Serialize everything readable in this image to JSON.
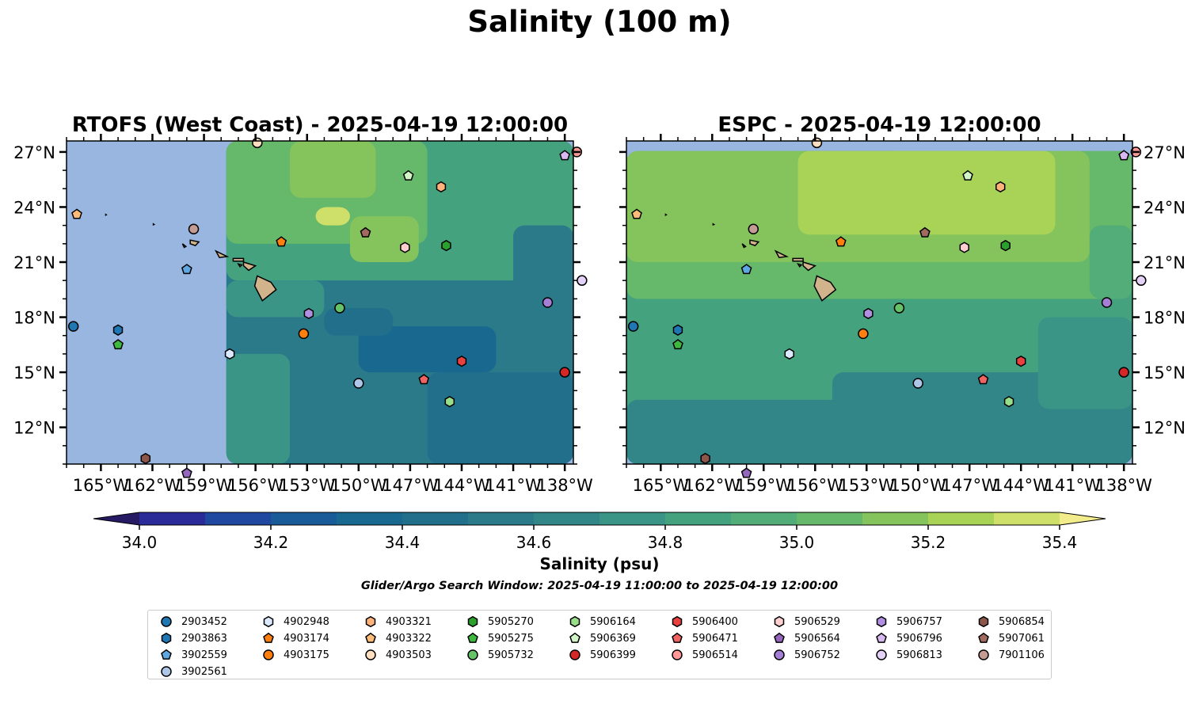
{
  "title": "Salinity (100 m)",
  "panels": [
    {
      "id": "rtofs",
      "title": "RTOFS (West Coast) - 2025-04-19 12:00:00"
    },
    {
      "id": "espc",
      "title": "ESPC - 2025-04-19 12:00:00"
    }
  ],
  "colors": {
    "land_mask": "#99b6e0",
    "island_fill": "#d2b48c",
    "levels": [
      "#251a63",
      "#2a2a98",
      "#1f48a0",
      "#195a98",
      "#186890",
      "#226f8c",
      "#2a7a8a",
      "#328688",
      "#3a9586",
      "#45a27f",
      "#52ad78",
      "#66b86a",
      "#85c45d",
      "#a9d356",
      "#cfe06a",
      "#f3ec8c"
    ]
  },
  "chart_data": [
    {
      "type": "heatmap",
      "panel": "rtofs",
      "title": "RTOFS (West Coast) - 2025-04-19 12:00:00",
      "variable": "Salinity (psu)",
      "depth_m": 100,
      "xlim": [
        -167,
        -137.5
      ],
      "ylim": [
        10,
        27.6
      ],
      "xticks": [
        -165,
        -162,
        -159,
        -156,
        -153,
        -150,
        -147,
        -144,
        -141,
        -138
      ],
      "xtick_labels": [
        "165°W",
        "162°W",
        "159°W",
        "156°W",
        "153°W",
        "150°W",
        "147°W",
        "144°W",
        "141°W",
        "138°W"
      ],
      "yticks": [
        12,
        15,
        18,
        21,
        24,
        27
      ],
      "ytick_labels": [
        "12°N",
        "15°N",
        "18°N",
        "21°N",
        "24°N",
        "27°N"
      ],
      "model_domain_west_lon": -157.7,
      "field_description": "eddying field ~34.4-35.2 psu, fresher in south-east, saltier in north",
      "field_blocks": [
        {
          "lon": [
            -157.7,
            -137.5
          ],
          "lat": [
            10,
            27.6
          ],
          "v": 34.55
        },
        {
          "lon": [
            -157.7,
            -137.5
          ],
          "lat": [
            20,
            27.6
          ],
          "v": 34.85
        },
        {
          "lon": [
            -157.7,
            -146
          ],
          "lat": [
            22,
            27.6
          ],
          "v": 35.05
        },
        {
          "lon": [
            -154,
            -149
          ],
          "lat": [
            24.5,
            27.6
          ],
          "v": 35.12
        },
        {
          "lon": [
            -150.5,
            -146.5
          ],
          "lat": [
            21,
            23.5
          ],
          "v": 35.1
        },
        {
          "lon": [
            -157.7,
            -152
          ],
          "lat": [
            18,
            20
          ],
          "v": 34.75
        },
        {
          "lon": [
            -146,
            -137.5
          ],
          "lat": [
            10,
            15
          ],
          "v": 34.42
        },
        {
          "lon": [
            -150,
            -142
          ],
          "lat": [
            15,
            17.5
          ],
          "v": 34.38
        },
        {
          "lon": [
            -152,
            -148
          ],
          "lat": [
            17,
            18.5
          ],
          "v": 34.45
        },
        {
          "lon": [
            -141,
            -137.5
          ],
          "lat": [
            18,
            23
          ],
          "v": 34.5
        },
        {
          "lon": [
            -157.7,
            -154
          ],
          "lat": [
            10,
            16
          ],
          "v": 34.7
        },
        {
          "lon": [
            -152.5,
            -150.5
          ],
          "lat": [
            23,
            24
          ],
          "v": 35.3
        }
      ]
    },
    {
      "type": "heatmap",
      "panel": "espc",
      "title": "ESPC - 2025-04-19 12:00:00",
      "variable": "Salinity (psu)",
      "depth_m": 100,
      "xlim": [
        -167,
        -137.5
      ],
      "ylim": [
        10,
        27.6
      ],
      "xticks": [
        -165,
        -162,
        -159,
        -156,
        -153,
        -150,
        -147,
        -144,
        -141,
        -138
      ],
      "xtick_labels": [
        "165°W",
        "162°W",
        "159°W",
        "156°W",
        "153°W",
        "150°W",
        "147°W",
        "144°W",
        "141°W",
        "138°W"
      ],
      "yticks": [
        12,
        15,
        18,
        21,
        24,
        27
      ],
      "ytick_labels": [
        "12°N",
        "15°N",
        "18°N",
        "21°N",
        "24°N",
        "27°N"
      ],
      "model_domain_north_lat": 27.05,
      "field_description": "smooth field, ~35.2 psu north grading to ~34.6 psu south",
      "field_blocks": [
        {
          "lon": [
            -167,
            -137.5
          ],
          "lat": [
            10,
            27.05
          ],
          "v": 34.85
        },
        {
          "lon": [
            -167,
            -137.5
          ],
          "lat": [
            10,
            13.5
          ],
          "v": 34.62
        },
        {
          "lon": [
            -155,
            -137.5
          ],
          "lat": [
            10,
            15
          ],
          "v": 34.65
        },
        {
          "lon": [
            -143,
            -137.5
          ],
          "lat": [
            13,
            18
          ],
          "v": 34.72
        },
        {
          "lon": [
            -167,
            -137.5
          ],
          "lat": [
            19,
            27.05
          ],
          "v": 35.05
        },
        {
          "lon": [
            -167,
            -140
          ],
          "lat": [
            21,
            27.05
          ],
          "v": 35.12
        },
        {
          "lon": [
            -157,
            -142
          ],
          "lat": [
            22.5,
            27.05
          ],
          "v": 35.22
        },
        {
          "lon": [
            -152,
            -145
          ],
          "lat": [
            25,
            27.05
          ],
          "v": 35.28
        },
        {
          "lon": [
            -140,
            -137.5
          ],
          "lat": [
            19,
            23
          ],
          "v": 34.95
        }
      ]
    }
  ],
  "colorbar": {
    "label": "Salinity (psu)",
    "levels": [
      34.0,
      34.1,
      34.2,
      34.3,
      34.4,
      34.5,
      34.6,
      34.7,
      34.8,
      34.9,
      35.0,
      35.1,
      35.2,
      35.3,
      35.4
    ],
    "ticks": [
      34.0,
      34.2,
      34.4,
      34.6,
      34.8,
      35.0,
      35.2,
      35.4
    ],
    "tick_labels": [
      "34.0",
      "34.2",
      "34.4",
      "34.6",
      "34.8",
      "35.0",
      "35.2",
      "35.4"
    ],
    "extend": "both"
  },
  "islands": [
    {
      "name": "Hawaii",
      "poly": [
        [
          -155.9,
          20.25
        ],
        [
          -155.1,
          19.9
        ],
        [
          -154.8,
          19.5
        ],
        [
          -155.6,
          18.9
        ],
        [
          -156.05,
          19.7
        ]
      ]
    },
    {
      "name": "Maui",
      "poly": [
        [
          -156.7,
          21.0
        ],
        [
          -156.0,
          20.8
        ],
        [
          -156.4,
          20.55
        ],
        [
          -156.7,
          20.8
        ]
      ]
    },
    {
      "name": "Molokai",
      "poly": [
        [
          -157.3,
          21.2
        ],
        [
          -156.7,
          21.2
        ],
        [
          -156.7,
          21.05
        ],
        [
          -157.3,
          21.05
        ]
      ]
    },
    {
      "name": "Oahu",
      "poly": [
        [
          -158.3,
          21.6
        ],
        [
          -157.65,
          21.3
        ],
        [
          -158.1,
          21.25
        ]
      ]
    },
    {
      "name": "Kauai",
      "poly": [
        [
          -159.8,
          22.2
        ],
        [
          -159.3,
          22.1
        ],
        [
          -159.5,
          21.9
        ],
        [
          -159.8,
          22.0
        ]
      ]
    },
    {
      "name": "Niihau",
      "poly": [
        [
          -160.25,
          22.0
        ],
        [
          -160.05,
          21.85
        ],
        [
          -160.15,
          21.8
        ]
      ]
    },
    {
      "name": "Lanai",
      "poly": [
        [
          -157.0,
          20.9
        ],
        [
          -156.8,
          20.85
        ],
        [
          -156.9,
          20.75
        ]
      ]
    },
    {
      "name": "Nihoa",
      "poly": [
        [
          -161.95,
          23.08
        ],
        [
          -161.9,
          23.05
        ],
        [
          -161.95,
          23.03
        ]
      ]
    },
    {
      "name": "Necker",
      "poly": [
        [
          -164.72,
          23.6
        ],
        [
          -164.68,
          23.58
        ],
        [
          -164.72,
          23.56
        ]
      ]
    }
  ],
  "legend": {
    "items": [
      {
        "id": "2903452",
        "marker": "circle",
        "color": "#1f77b4",
        "lon": -166.6,
        "lat": 17.5
      },
      {
        "id": "2903863",
        "marker": "hexagon",
        "color": "#1f77b4",
        "lon": -164.0,
        "lat": 17.3
      },
      {
        "id": "3902559",
        "marker": "pentagon",
        "color": "#5fa7e0",
        "lon": -160.0,
        "lat": 20.6
      },
      {
        "id": "3902561",
        "marker": "circle",
        "color": "#aec7e8",
        "lon": -150.0,
        "lat": 14.4
      },
      {
        "id": "4902948",
        "marker": "hexagon",
        "color": "#dbeaff",
        "lon": -157.5,
        "lat": 16.0
      },
      {
        "id": "4903174",
        "marker": "pentagon",
        "color": "#ff7f0e",
        "lon": -154.5,
        "lat": 22.1
      },
      {
        "id": "4903175",
        "marker": "circle",
        "color": "#ff7f0e",
        "lon": -153.2,
        "lat": 17.1
      },
      {
        "id": "4903321",
        "marker": "hexagon",
        "color": "#ffb27a",
        "lon": -145.2,
        "lat": 25.1
      },
      {
        "id": "4903322",
        "marker": "pentagon",
        "color": "#ffbb78",
        "lon": -166.4,
        "lat": 23.6
      },
      {
        "id": "4903503",
        "marker": "circle",
        "color": "#ffdfbf",
        "lon": -155.9,
        "lat": 27.5
      },
      {
        "id": "5905270",
        "marker": "hexagon",
        "color": "#2ca02c",
        "lon": -144.9,
        "lat": 21.9
      },
      {
        "id": "5905275",
        "marker": "pentagon",
        "color": "#3fb83f",
        "lon": -164.0,
        "lat": 16.5
      },
      {
        "id": "5905732",
        "marker": "circle",
        "color": "#66c266",
        "lon": -151.1,
        "lat": 18.5
      },
      {
        "id": "5906164",
        "marker": "hexagon",
        "color": "#98df8a",
        "lon": -144.7,
        "lat": 13.4
      },
      {
        "id": "5906369",
        "marker": "pentagon",
        "color": "#d2f5c8",
        "lon": -147.1,
        "lat": 25.7
      },
      {
        "id": "5906399",
        "marker": "circle",
        "color": "#d62728",
        "lon": -138.0,
        "lat": 15.0
      },
      {
        "id": "5906400",
        "marker": "hexagon",
        "color": "#e8413f",
        "lon": -144.0,
        "lat": 15.6
      },
      {
        "id": "5906471",
        "marker": "pentagon",
        "color": "#ef6363",
        "lon": -146.2,
        "lat": 14.6
      },
      {
        "id": "5906514",
        "marker": "circle",
        "color": "#ff9896",
        "lon": -137.3,
        "lat": 27.0
      },
      {
        "id": "5906529",
        "marker": "hexagon",
        "color": "#ffd0cf",
        "lon": -147.3,
        "lat": 21.8
      },
      {
        "id": "5906564",
        "marker": "pentagon",
        "color": "#9467bd",
        "lon": -160.0,
        "lat": 9.5
      },
      {
        "id": "5906752",
        "marker": "circle",
        "color": "#a57fd6",
        "lon": -139.0,
        "lat": 18.8
      },
      {
        "id": "5906757",
        "marker": "hexagon",
        "color": "#b08ee0",
        "lon": -152.9,
        "lat": 18.2
      },
      {
        "id": "5906796",
        "marker": "pentagon",
        "color": "#d9b8f2",
        "lon": -138.0,
        "lat": 26.8
      },
      {
        "id": "5906813",
        "marker": "circle",
        "color": "#e3d1f7",
        "lon": -137.0,
        "lat": 20.0
      },
      {
        "id": "5906854",
        "marker": "hexagon",
        "color": "#8c564b",
        "lon": -162.4,
        "lat": 10.3
      },
      {
        "id": "5907061",
        "marker": "pentagon",
        "color": "#a06a5e",
        "lon": -149.6,
        "lat": 22.6
      },
      {
        "id": "7901106",
        "marker": "circle",
        "color": "#c49c94",
        "lon": -159.6,
        "lat": 22.8
      }
    ]
  },
  "search_window": "Glider/Argo Search Window: 2025-04-19 11:00:00 to 2025-04-19 12:00:00"
}
